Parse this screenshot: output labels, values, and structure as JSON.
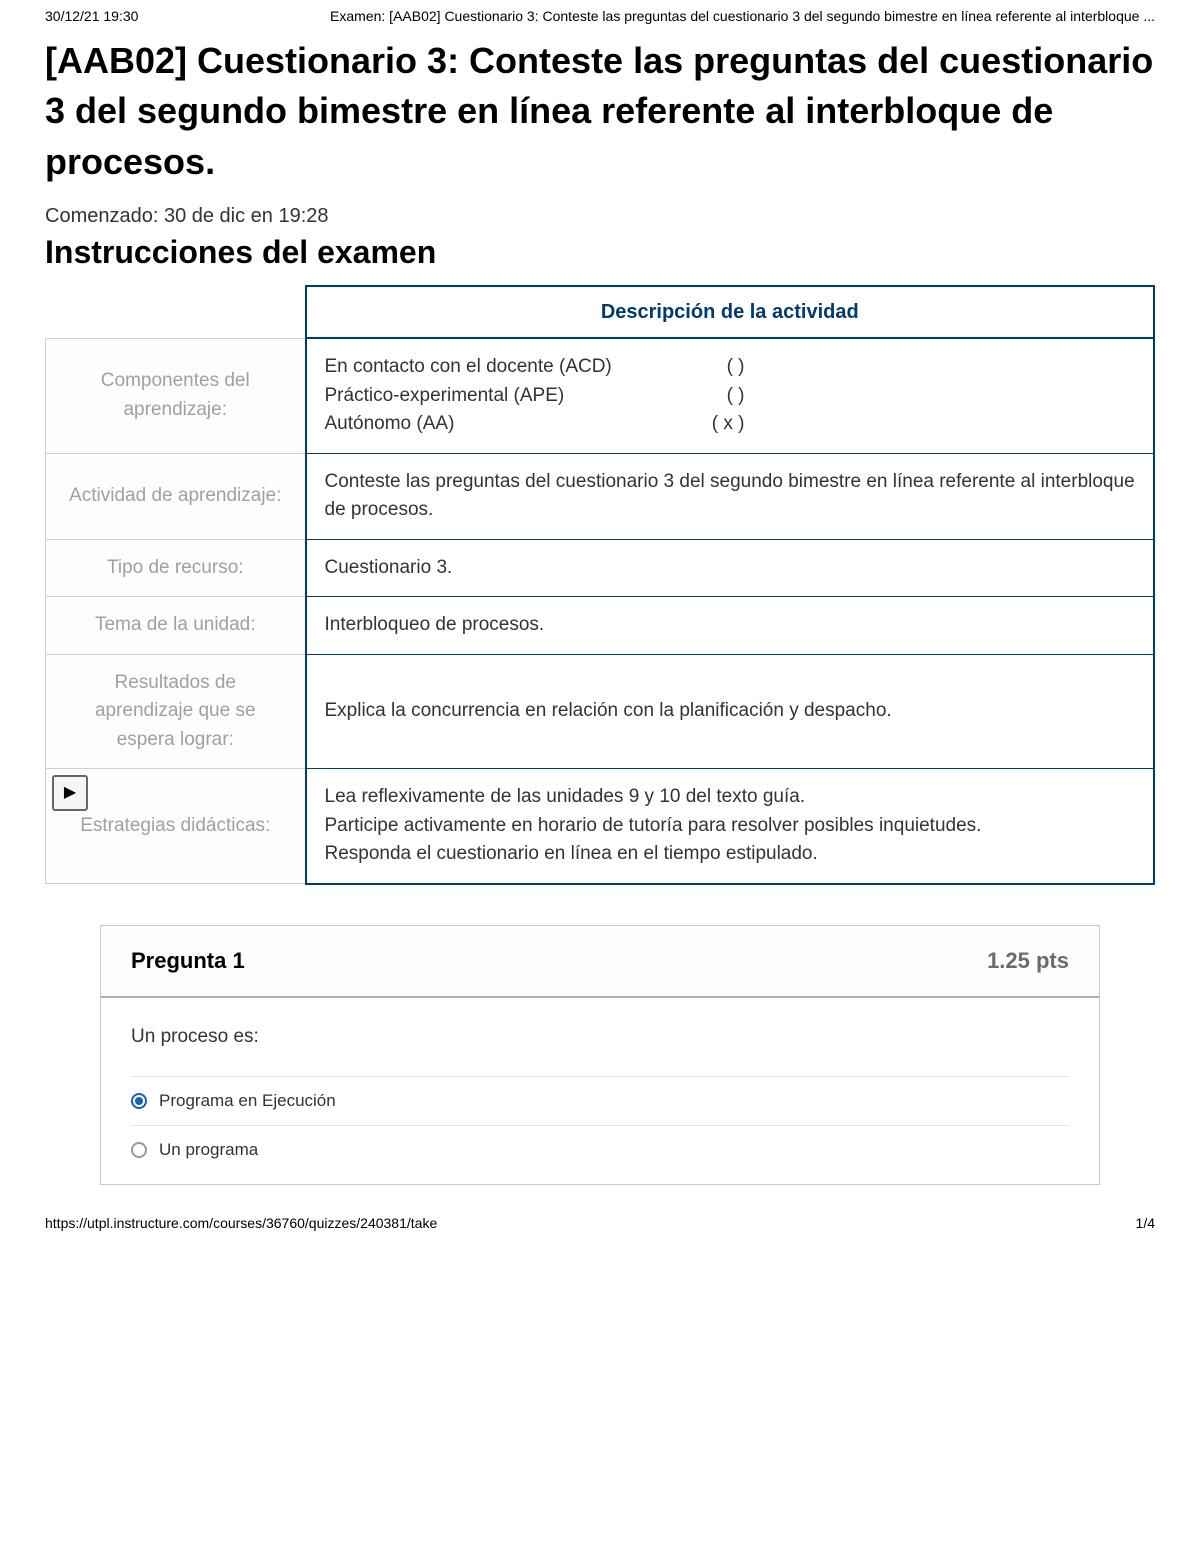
{
  "header": {
    "timestamp": "30/12/21 19:30",
    "doc_title": "Examen: [AAB02] Cuestionario 3: Conteste las preguntas del cuestionario 3 del segundo bimestre en línea referente al interbloque ..."
  },
  "title": "[AAB02] Cuestionario 3: Conteste las preguntas del cuestionario 3 del segundo bimestre en línea referente al interbloque de procesos.",
  "started": "Comenzado: 30 de dic en 19:28",
  "instructions_heading": "Instrucciones del examen",
  "activity": {
    "description_header": "Descripción de la actividad",
    "rows": [
      {
        "label": "Componentes del aprendizaje:",
        "lines": [
          {
            "left": "En contacto con el docente (ACD)",
            "right": "(      )"
          },
          {
            "left": "Práctico-experimental (APE)",
            "right": "(      )"
          },
          {
            "left": "Autónomo (AA)",
            "right": "(  x  )"
          }
        ]
      },
      {
        "label": "Actividad de aprendizaje:",
        "text": "Conteste las preguntas del cuestionario 3 del segundo bimestre en línea referente al interbloque de procesos."
      },
      {
        "label": "Tipo de recurso:",
        "text": "Cuestionario 3."
      },
      {
        "label": "Tema de la unidad:",
        "text": "Interbloqueo de procesos."
      },
      {
        "label": "Resultados de aprendizaje que se espera lograr:",
        "text": "Explica la concurrencia en relación con la planificación y despacho."
      },
      {
        "label": "Estrategias didácticas:",
        "text": "Lea reflexivamente de las unidades 9 y 10 del texto guía.\nParticipe activamente en horario de tutoría para resolver posibles inquietudes.\nResponda el cuestionario en línea en el tiempo estipulado."
      }
    ]
  },
  "question": {
    "title": "Pregunta 1",
    "points": "1.25 pts",
    "text": "Un proceso es:",
    "options": [
      {
        "label": "Programa en Ejecución",
        "selected": true
      },
      {
        "label": "Un programa",
        "selected": false
      }
    ]
  },
  "footer": {
    "url": "https://utpl.instructure.com/courses/36760/quizzes/240381/take",
    "page": "1/4"
  },
  "colors": {
    "border_dark": "#003a6e",
    "label_gray": "#a0a0a0",
    "radio_selected": "#1b5fb3"
  }
}
